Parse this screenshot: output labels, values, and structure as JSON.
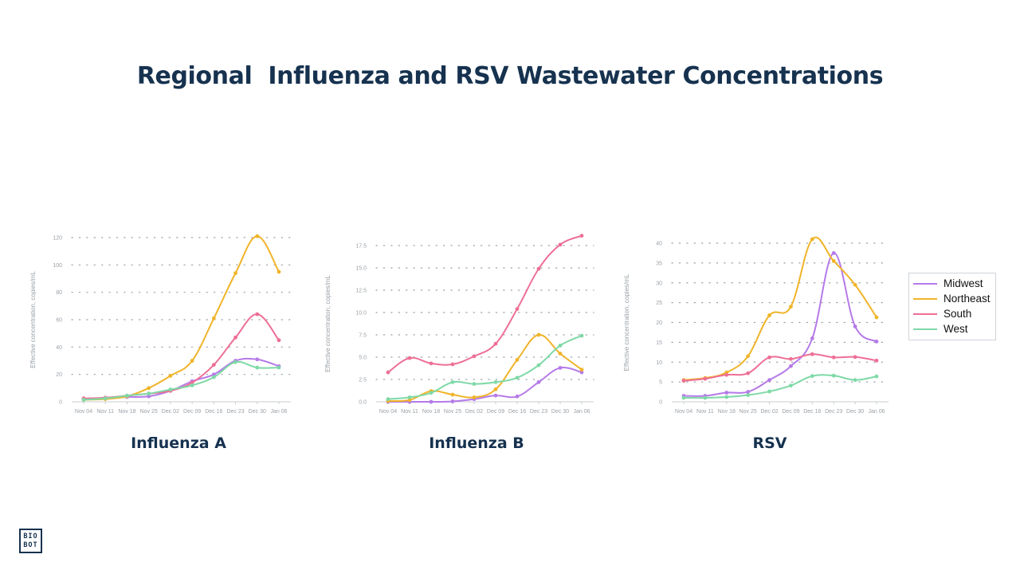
{
  "page": {
    "title": "Regional  Influenza and RSV Wastewater Concentrations",
    "logo_text": "BIO\nBOT"
  },
  "colors": {
    "Midwest": "#b57ae8",
    "Northeast": "#f0b429",
    "South": "#ee6f96",
    "West": "#7ed9a6",
    "title": "#16324f"
  },
  "legend": {
    "placement": "right",
    "items": [
      {
        "name": "Midwest",
        "color": "#b57ae8"
      },
      {
        "name": "Northeast",
        "color": "#f0b429"
      },
      {
        "name": "South",
        "color": "#ee6f96"
      },
      {
        "name": "West",
        "color": "#7ed9a6"
      }
    ]
  },
  "chart_data": [
    {
      "type": "line",
      "title": "Influenza A",
      "ylabel": "Effective concentration, copies/mL",
      "x": [
        "Nov 04",
        "Nov 11",
        "Nov 18",
        "Nov 25",
        "Dec 02",
        "Dec 09",
        "Dec 16",
        "Dec 23",
        "Dec 30",
        "Jan 06"
      ],
      "ylim": [
        0,
        120
      ],
      "yticks": [
        0,
        20,
        40,
        60,
        80,
        100,
        120
      ],
      "grid": true,
      "series": [
        {
          "name": "Midwest",
          "values": [
            2,
            3,
            3.5,
            4,
            8,
            15,
            20,
            30,
            31,
            26
          ]
        },
        {
          "name": "Northeast",
          "values": [
            1.5,
            2,
            4,
            10,
            19,
            30,
            61,
            94,
            121,
            95
          ]
        },
        {
          "name": "South",
          "values": [
            2.5,
            3,
            4.5,
            6,
            8,
            14,
            27,
            47,
            64,
            45
          ]
        },
        {
          "name": "West",
          "values": [
            1.5,
            2.5,
            4.5,
            6,
            9,
            12,
            18,
            29,
            25,
            25
          ]
        }
      ]
    },
    {
      "type": "line",
      "title": "Influenza B",
      "ylabel": "Effective concentration, copies/mL",
      "x": [
        "Nov 04",
        "Nov 11",
        "Nov 18",
        "Nov 25",
        "Dec 02",
        "Dec 09",
        "Dec 16",
        "Dec 23",
        "Dec 30",
        "Jan 06"
      ],
      "ylim": [
        0,
        17.5
      ],
      "yticks": [
        0,
        2.5,
        5,
        7.5,
        10,
        12.5,
        15,
        17.5
      ],
      "yticklabels": [
        "0.0",
        "2.5",
        "5.0",
        "7.5",
        "10.0",
        "12.5",
        "15.0",
        "17.5"
      ],
      "grid": true,
      "series": [
        {
          "name": "Midwest",
          "values": [
            0,
            0,
            0,
            0.05,
            0.3,
            0.7,
            0.6,
            2.2,
            3.8,
            3.3
          ]
        },
        {
          "name": "Northeast",
          "values": [
            0.1,
            0.2,
            1.2,
            0.8,
            0.5,
            1.4,
            4.7,
            7.5,
            5.4,
            3.6
          ]
        },
        {
          "name": "South",
          "values": [
            3.3,
            4.9,
            4.3,
            4.2,
            5.1,
            6.5,
            10.4,
            14.9,
            17.6,
            18.6
          ]
        },
        {
          "name": "West",
          "values": [
            0.3,
            0.5,
            1.0,
            2.2,
            2.0,
            2.2,
            2.7,
            4.1,
            6.3,
            7.4
          ]
        }
      ]
    },
    {
      "type": "line",
      "title": "RSV",
      "ylabel": "Effective concentration, copies/mL",
      "x": [
        "Nov 04",
        "Nov 11",
        "Nov 18",
        "Nov 25",
        "Dec 02",
        "Dec 09",
        "Dec 16",
        "Dec 23",
        "Dec 30",
        "Jan 06"
      ],
      "ylim": [
        0,
        40
      ],
      "yticks": [
        0,
        5,
        10,
        15,
        20,
        25,
        30,
        35,
        40
      ],
      "grid": true,
      "series": [
        {
          "name": "Midwest",
          "values": [
            1.5,
            1.5,
            2.3,
            2.5,
            5.5,
            9,
            16,
            37.5,
            19,
            15.2
          ]
        },
        {
          "name": "Northeast",
          "values": [
            5.5,
            6,
            7.4,
            11.5,
            21.8,
            24,
            41,
            35.5,
            29.5,
            21.3
          ]
        },
        {
          "name": "South",
          "values": [
            5.3,
            5.8,
            6.8,
            7.2,
            11.2,
            10.8,
            12,
            11.2,
            11.3,
            10.4
          ]
        },
        {
          "name": "West",
          "values": [
            1,
            1,
            1.2,
            1.7,
            2.6,
            4.1,
            6.5,
            6.6,
            5.5,
            6.4
          ]
        }
      ]
    }
  ]
}
